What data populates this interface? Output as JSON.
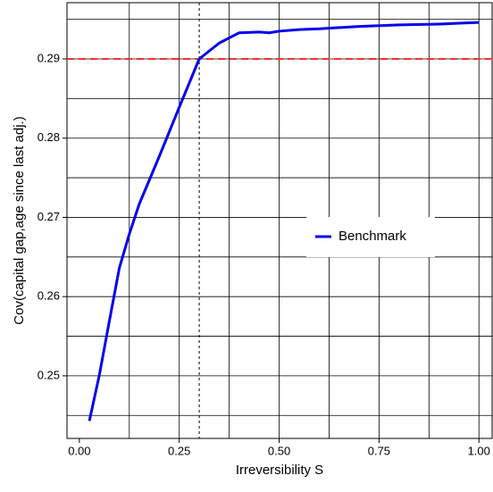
{
  "chart_data": {
    "type": "line",
    "x_label": "Irreversibility S",
    "y_label": "Cov(capital gap,age since last adj.)",
    "x": [
      0.025,
      0.05,
      0.075,
      0.1,
      0.125,
      0.15,
      0.2,
      0.25,
      0.3,
      0.35,
      0.4,
      0.45,
      0.475,
      0.5,
      0.55,
      0.6,
      0.7,
      0.8,
      0.9,
      1.0
    ],
    "series": [
      {
        "name": "Benchmark",
        "color": "#0000ee",
        "values": [
          0.2443,
          0.2501,
          0.2569,
          0.2636,
          0.2679,
          0.2717,
          0.2777,
          0.2839,
          0.29,
          0.292,
          0.2933,
          0.2934,
          0.2933,
          0.2935,
          0.2937,
          0.2938,
          0.2941,
          0.2943,
          0.2944,
          0.2946
        ]
      }
    ],
    "xlim": [
      -0.031,
      1.033
    ],
    "ylim": [
      0.2421,
      0.2971
    ],
    "xticks": [
      {
        "value": 0,
        "label": "0.00"
      },
      0.25,
      {
        "value": 0.5,
        "label": "0.50"
      },
      0.75,
      {
        "value": 1,
        "label": "1.00"
      }
    ],
    "yticks": [
      0.25,
      0.26,
      0.27,
      0.28,
      0.29
    ],
    "xgrid": [
      0.125,
      0.25,
      0.375,
      0.5,
      0.625,
      0.75,
      0.875,
      1
    ],
    "ygrid": [
      0.245,
      0.25,
      0.255,
      0.26,
      0.265,
      0.27,
      0.275,
      0.28,
      0.285,
      0.29,
      0.295
    ],
    "hline": {
      "value": 0.29,
      "color": "#ff3030"
    },
    "vline": {
      "value": 0.3,
      "color": "#000000"
    },
    "legend": "center-right"
  }
}
